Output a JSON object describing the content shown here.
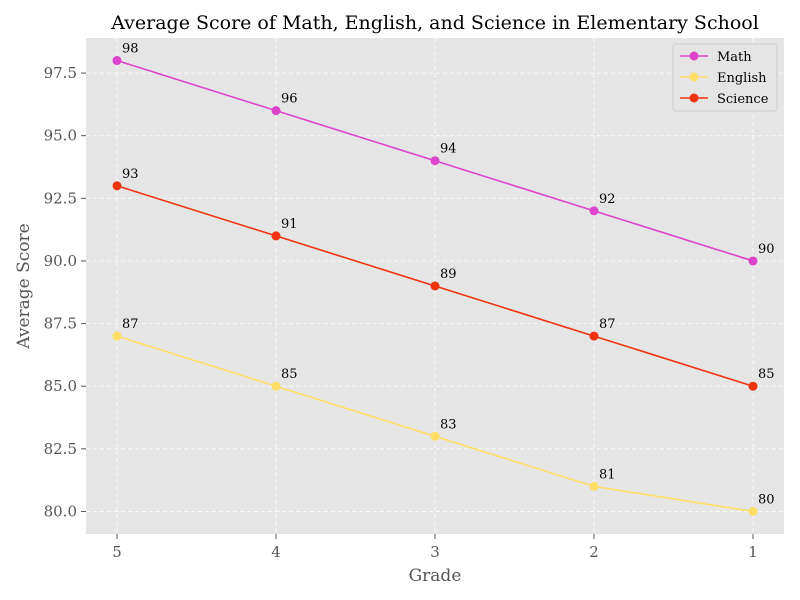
{
  "chart_data": {
    "type": "line",
    "title": "Average Score of Math, English, and Science in Elementary School",
    "xlabel": "Grade",
    "ylabel": "Average Score",
    "categories": [
      "5",
      "4",
      "3",
      "2",
      "1"
    ],
    "ylim": [
      79.1,
      98.9
    ],
    "yticks": [
      "80.0",
      "82.5",
      "85.0",
      "87.5",
      "90.0",
      "92.5",
      "95.0",
      "97.5"
    ],
    "grid": true,
    "legend_position": "top-right",
    "series": [
      {
        "name": "Math",
        "color": "#dd44cc",
        "values": [
          98,
          96,
          94,
          92,
          90
        ]
      },
      {
        "name": "English",
        "color": "#ffdd66",
        "values": [
          87,
          85,
          83,
          81,
          80
        ]
      },
      {
        "name": "Science",
        "color": "#ee3311",
        "values": [
          93,
          91,
          89,
          87,
          85
        ]
      }
    ]
  }
}
